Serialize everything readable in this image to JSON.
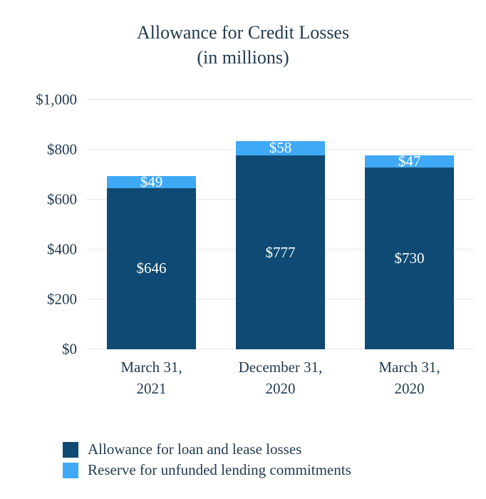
{
  "title": {
    "line1": "Allowance for Credit Losses",
    "line2": "(in millions)"
  },
  "chart_data": {
    "type": "bar",
    "stacked": true,
    "title": "Allowance for Credit Losses",
    "subtitle": "(in millions)",
    "xlabel": "",
    "ylabel": "",
    "ylim": [
      0,
      1000
    ],
    "grid": true,
    "legend_position": "bottom-left",
    "categories": [
      [
        "March 31,",
        "2021"
      ],
      [
        "December 31,",
        "2020"
      ],
      [
        "March 31,",
        "2020"
      ]
    ],
    "series": [
      {
        "name": "Allowance for loan and lease losses",
        "color": "#0e4a73",
        "values": [
          646,
          777,
          730
        ],
        "labels": [
          "$646",
          "$777",
          "$730"
        ]
      },
      {
        "name": "Reserve for unfunded lending commitments",
        "color": "#3fa9f5",
        "values": [
          49,
          58,
          47
        ],
        "labels": [
          "$49",
          "$58",
          "$47"
        ]
      }
    ],
    "yticks": [
      {
        "value": 0,
        "label": "$0"
      },
      {
        "value": 200,
        "label": "$200"
      },
      {
        "value": 400,
        "label": "$400"
      },
      {
        "value": 600,
        "label": "$600"
      },
      {
        "value": 800,
        "label": "$800"
      },
      {
        "value": 1000,
        "label": "$1,000"
      }
    ],
    "totals": [
      695,
      835,
      777
    ]
  }
}
